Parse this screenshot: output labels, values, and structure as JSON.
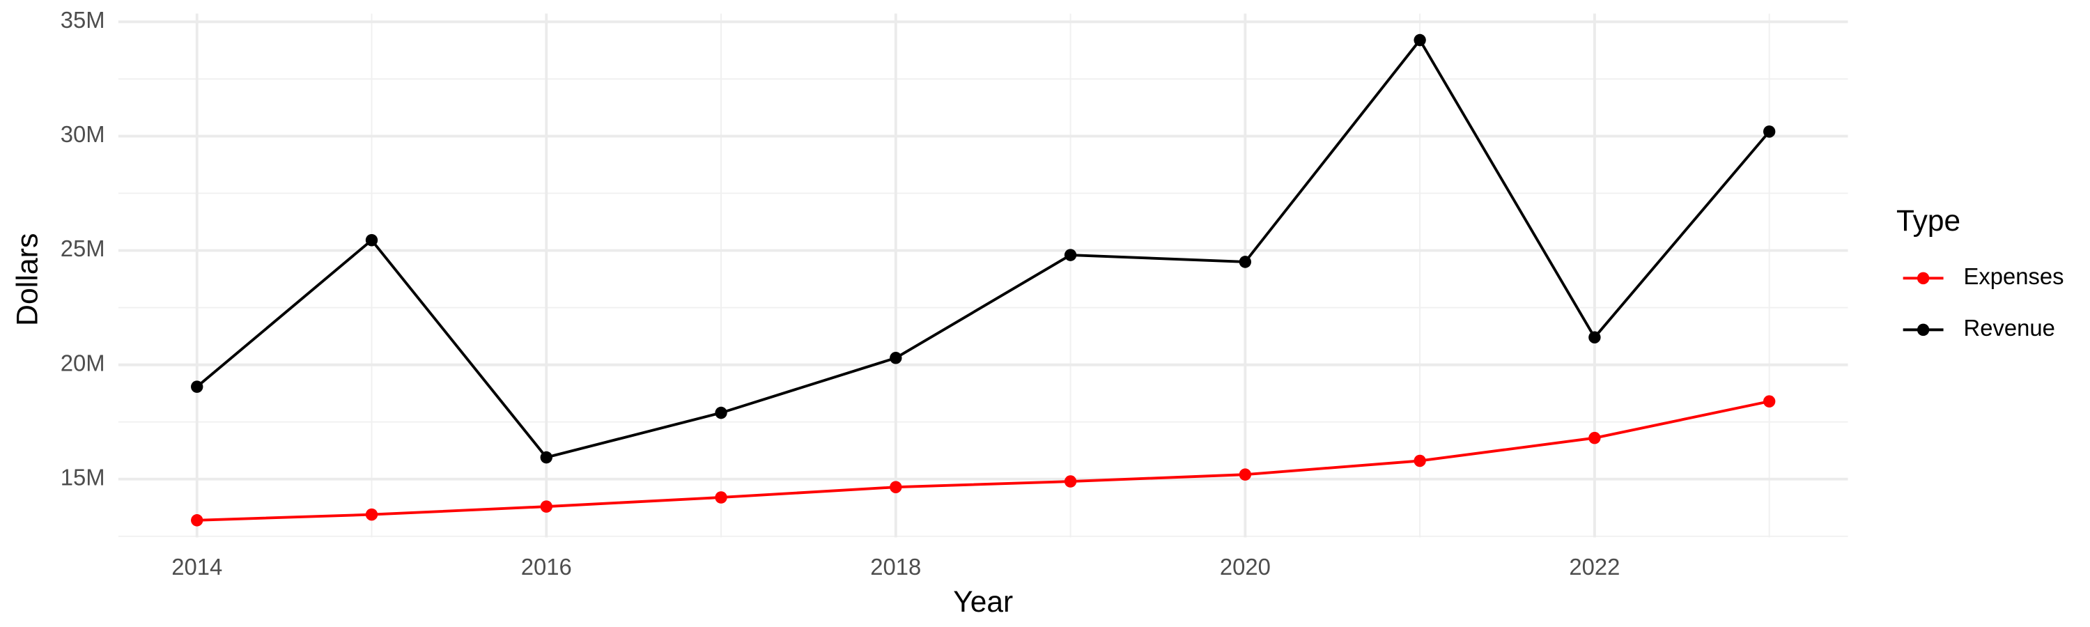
{
  "chart_data": {
    "type": "line",
    "x_label": "Year",
    "y_label": "Dollars",
    "legend_title": "Type",
    "legend": "right",
    "grid": true,
    "x": [
      2014,
      2015,
      2016,
      2017,
      2018,
      2019,
      2020,
      2021,
      2022,
      2023
    ],
    "series": [
      {
        "name": "Expenses",
        "color": "#ff0000",
        "values": [
          13200000,
          13450000,
          13800000,
          14200000,
          14650000,
          14900000,
          15200000,
          15800000,
          16800000,
          18400000
        ]
      },
      {
        "name": "Revenue",
        "color": "#000000",
        "values": [
          19040000,
          25450000,
          15950000,
          17900000,
          20300000,
          24800000,
          24500000,
          34200000,
          21200000,
          30200000
        ]
      }
    ],
    "xlim": [
      2013.55,
      2023.45
    ],
    "xticks": [
      2014,
      2016,
      2018,
      2020,
      2022
    ],
    "ylim": [
      12450000,
      35360000
    ],
    "yticks": [
      {
        "value": 15000000,
        "label": "15M"
      },
      {
        "value": 20000000,
        "label": "20M"
      },
      {
        "value": 25000000,
        "label": "25M"
      },
      {
        "value": 30000000,
        "label": "30M"
      },
      {
        "value": 35000000,
        "label": "35M"
      }
    ]
  }
}
